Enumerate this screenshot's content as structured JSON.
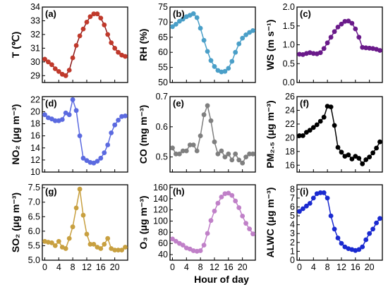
{
  "x_axis_title": "Hour of day",
  "chart_data": [
    {
      "type": "line",
      "panel": "(a)",
      "ylabel": "T (℃)",
      "color": "#8b1a1a",
      "marker_color": "#c0392b",
      "ylim": [
        28.5,
        34
      ],
      "yticks": [
        29,
        30,
        31,
        32,
        33,
        34
      ],
      "xlim": [
        -0.7,
        23.7
      ],
      "xticks": [
        0,
        4,
        8,
        12,
        16,
        20
      ],
      "x": [
        0,
        1,
        2,
        3,
        4,
        5,
        6,
        7,
        8,
        9,
        10,
        11,
        12,
        13,
        14,
        15,
        16,
        17,
        18,
        19,
        20,
        21,
        22,
        23
      ],
      "values": [
        30.2,
        30.0,
        29.8,
        29.5,
        29.3,
        29.1,
        29.0,
        29.4,
        30.3,
        31.2,
        31.9,
        32.4,
        32.9,
        33.3,
        33.5,
        33.5,
        33.2,
        32.7,
        32.0,
        31.4,
        31.0,
        30.7,
        30.5,
        30.4
      ]
    },
    {
      "type": "line",
      "panel": "(b)",
      "ylabel": "RH (%)",
      "color": "#4a9fc8",
      "marker_color": "#4a9fc8",
      "ylim": [
        50,
        75
      ],
      "yticks": [
        50,
        55,
        60,
        65,
        70,
        75
      ],
      "xlim": [
        -0.7,
        23.7
      ],
      "xticks": [
        0,
        4,
        8,
        12,
        16,
        20
      ],
      "x": [
        0,
        1,
        2,
        3,
        4,
        5,
        6,
        7,
        8,
        9,
        10,
        11,
        12,
        13,
        14,
        15,
        16,
        17,
        18,
        19,
        20,
        21,
        22,
        23
      ],
      "values": [
        68.5,
        69.3,
        70.3,
        71.0,
        71.8,
        72.3,
        72.8,
        71.5,
        68.0,
        64.0,
        60.3,
        57.3,
        55.3,
        54.0,
        53.5,
        53.7,
        54.7,
        57.0,
        60.0,
        62.8,
        64.7,
        65.8,
        66.6,
        67.2
      ]
    },
    {
      "type": "line",
      "panel": "(c)",
      "ylabel": "WS (m s⁻¹)",
      "color": "#6a1a8a",
      "marker_color": "#6a1a8a",
      "ylim": [
        0,
        2.0
      ],
      "yticks": [
        0.0,
        0.5,
        1.0,
        1.5,
        2.0
      ],
      "xlim": [
        -0.7,
        23.7
      ],
      "xticks": [
        0,
        4,
        8,
        12,
        16,
        20
      ],
      "x": [
        0,
        1,
        2,
        3,
        4,
        5,
        6,
        7,
        8,
        9,
        10,
        11,
        12,
        13,
        14,
        15,
        16,
        17,
        18,
        19,
        20,
        21,
        22,
        23
      ],
      "values": [
        0.75,
        0.74,
        0.77,
        0.79,
        0.77,
        0.76,
        0.79,
        0.9,
        1.05,
        1.2,
        1.35,
        1.47,
        1.55,
        1.62,
        1.63,
        1.57,
        1.42,
        1.2,
        0.93,
        0.92,
        0.91,
        0.9,
        0.88,
        0.85
      ]
    },
    {
      "type": "line",
      "panel": "(d)",
      "ylabel": "NO₂ (μg m⁻³)",
      "color": "#5b6ae0",
      "marker_color": "#5b6ae0",
      "ylim": [
        10,
        22.5
      ],
      "yticks": [
        10,
        12,
        14,
        16,
        18,
        20,
        22
      ],
      "xlim": [
        -0.7,
        23.7
      ],
      "xticks": [
        0,
        4,
        8,
        12,
        16,
        20
      ],
      "x": [
        0,
        1,
        2,
        3,
        4,
        5,
        6,
        7,
        8,
        9,
        10,
        11,
        12,
        13,
        14,
        15,
        16,
        17,
        18,
        19,
        20,
        21,
        22,
        23
      ],
      "values": [
        19.5,
        19.0,
        18.8,
        18.5,
        18.5,
        18.7,
        19.8,
        19.5,
        22.0,
        20.2,
        16.0,
        12.3,
        11.9,
        11.6,
        11.5,
        11.8,
        12.3,
        13.2,
        14.5,
        16.5,
        17.8,
        18.6,
        19.2,
        19.3
      ]
    },
    {
      "type": "line",
      "panel": "(e)",
      "ylabel": "CO (mg m⁻³)",
      "color": "#7f7f7f",
      "marker_color": "#7f7f7f",
      "ylim": [
        0.45,
        0.7
      ],
      "yticks": [
        0.5,
        0.6,
        0.7
      ],
      "xlim": [
        -0.7,
        23.7
      ],
      "xticks": [
        0,
        4,
        8,
        12,
        16,
        20
      ],
      "x": [
        0,
        1,
        2,
        3,
        4,
        5,
        6,
        7,
        8,
        9,
        10,
        11,
        12,
        13,
        14,
        15,
        16,
        17,
        18,
        19,
        20,
        21,
        22,
        23
      ],
      "values": [
        0.53,
        0.51,
        0.51,
        0.52,
        0.52,
        0.54,
        0.54,
        0.52,
        0.57,
        0.64,
        0.67,
        0.62,
        0.55,
        0.51,
        0.52,
        0.5,
        0.51,
        0.49,
        0.51,
        0.49,
        0.48,
        0.5,
        0.51,
        0.51
      ]
    },
    {
      "type": "line",
      "panel": "(f)",
      "ylabel": "PM₂.₅ (μg m⁻³)",
      "color": "#000000",
      "marker_color": "#000000",
      "ylim": [
        15,
        26
      ],
      "yticks": [
        16,
        18,
        20,
        22,
        24,
        26
      ],
      "xlim": [
        -0.7,
        23.7
      ],
      "xticks": [
        0,
        4,
        8,
        12,
        16,
        20
      ],
      "x": [
        0,
        1,
        2,
        3,
        4,
        5,
        6,
        7,
        8,
        9,
        10,
        11,
        12,
        13,
        14,
        15,
        16,
        17,
        18,
        19,
        20,
        21,
        22,
        23
      ],
      "values": [
        20.3,
        20.3,
        20.8,
        21.1,
        21.5,
        21.9,
        22.4,
        23.0,
        24.6,
        24.5,
        21.8,
        18.6,
        17.9,
        17.3,
        17.5,
        16.9,
        17.3,
        17.0,
        16.2,
        16.8,
        17.2,
        17.8,
        18.5,
        19.4
      ]
    },
    {
      "type": "line",
      "panel": "(g)",
      "ylabel": "SO₂ (μg m⁻³)",
      "color": "#c8a040",
      "marker_color": "#c8a040",
      "ylim": [
        5.0,
        7.6
      ],
      "yticks": [
        5.0,
        5.5,
        6.0,
        6.5,
        7.0,
        7.5
      ],
      "xlim": [
        -0.7,
        23.7
      ],
      "xticks": [
        0,
        4,
        8,
        12,
        16,
        20
      ],
      "x": [
        0,
        1,
        2,
        3,
        4,
        5,
        6,
        7,
        8,
        9,
        10,
        11,
        12,
        13,
        14,
        15,
        16,
        17,
        18,
        19,
        20,
        21,
        22,
        23
      ],
      "values": [
        5.65,
        5.62,
        5.6,
        5.5,
        5.65,
        5.45,
        5.4,
        5.75,
        6.15,
        6.8,
        7.45,
        6.55,
        5.9,
        5.55,
        5.55,
        5.45,
        5.4,
        5.55,
        5.75,
        5.4,
        5.35,
        5.35,
        5.35,
        5.45
      ]
    },
    {
      "type": "line",
      "panel": "(h)",
      "ylabel": "O₃ (μg m⁻³)",
      "color": "#c080c8",
      "marker_color": "#c080c8",
      "ylim": [
        30,
        165
      ],
      "yticks": [
        40,
        60,
        80,
        100,
        120,
        140,
        160
      ],
      "xlim": [
        -0.7,
        23.7
      ],
      "xticks": [
        0,
        4,
        8,
        12,
        16,
        20
      ],
      "x": [
        0,
        1,
        2,
        3,
        4,
        5,
        6,
        7,
        8,
        9,
        10,
        11,
        12,
        13,
        14,
        15,
        16,
        17,
        18,
        19,
        20,
        21,
        22,
        23
      ],
      "values": [
        68,
        64,
        60,
        57,
        52,
        50,
        47,
        46,
        47,
        57,
        78,
        101,
        118,
        132,
        143,
        149,
        150,
        146,
        136,
        124,
        109,
        96,
        86,
        77
      ]
    },
    {
      "type": "line",
      "panel": "(i)",
      "ylabel": "ALWC (μg m⁻³)",
      "color": "#1a2ad0",
      "marker_color": "#1a2ad0",
      "ylim": [
        0,
        8.5
      ],
      "yticks": [
        0,
        1,
        2,
        3,
        4,
        5,
        6,
        7,
        8
      ],
      "xlim": [
        -0.7,
        23.7
      ],
      "xticks": [
        0,
        4,
        8,
        12,
        16,
        20
      ],
      "x": [
        0,
        1,
        2,
        3,
        4,
        5,
        6,
        7,
        8,
        9,
        10,
        11,
        12,
        13,
        14,
        15,
        16,
        17,
        18,
        19,
        20,
        21,
        22,
        23
      ],
      "values": [
        5.5,
        5.8,
        6.1,
        6.4,
        7.0,
        7.5,
        7.6,
        7.6,
        7.0,
        5.0,
        3.5,
        2.5,
        1.9,
        1.5,
        1.3,
        1.2,
        1.1,
        1.2,
        1.5,
        2.3,
        3.0,
        3.5,
        4.2,
        4.7
      ]
    }
  ]
}
